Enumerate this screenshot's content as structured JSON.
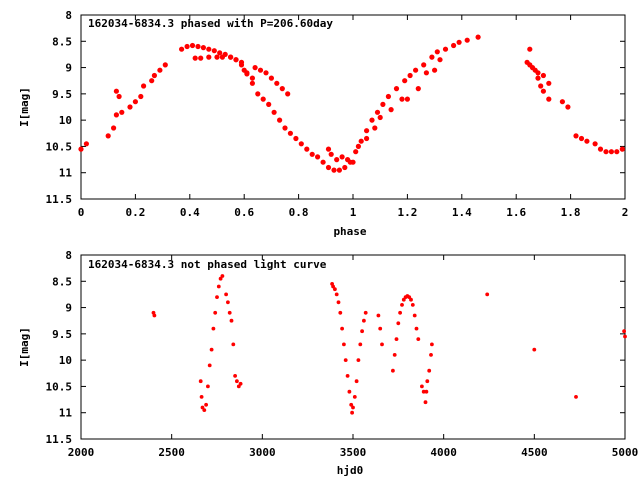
{
  "charts": [
    {
      "title": "162034-6834.3 phased with P=206.60day",
      "xlabel": "phase",
      "ylabel": "I[mag]",
      "xticks": [
        "0",
        "0.2",
        "0.4",
        "0.6",
        "0.8",
        "1",
        "1.2",
        "1.4",
        "1.6",
        "1.8",
        "2"
      ],
      "yticks": [
        "8",
        "8.5",
        "9",
        "9.5",
        "10",
        "10.5",
        "11",
        "11.5"
      ]
    },
    {
      "title": "162034-6834.3 not phased light curve",
      "xlabel": "hjd0",
      "ylabel": "I[mag]",
      "xticks": [
        "2000",
        "2500",
        "3000",
        "3500",
        "4000",
        "4500",
        "5000"
      ],
      "yticks": [
        "8",
        "8.5",
        "9",
        "9.5",
        "10",
        "10.5",
        "11",
        "11.5"
      ]
    }
  ],
  "chart_data": [
    {
      "type": "scatter",
      "title": "162034-6834.3 phased with P=206.60day",
      "xlabel": "phase",
      "ylabel": "I[mag]",
      "xlim": [
        0,
        2
      ],
      "ylim": [
        11.5,
        8
      ],
      "y_inverted": true,
      "grid": false,
      "marker_color": "#ff0000",
      "points": [
        [
          0.0,
          10.55
        ],
        [
          0.02,
          10.45
        ],
        [
          0.1,
          10.3
        ],
        [
          0.12,
          10.15
        ],
        [
          0.13,
          9.9
        ],
        [
          0.13,
          9.45
        ],
        [
          0.14,
          9.55
        ],
        [
          0.15,
          9.85
        ],
        [
          0.18,
          9.75
        ],
        [
          0.2,
          9.65
        ],
        [
          0.22,
          9.55
        ],
        [
          0.23,
          9.35
        ],
        [
          0.26,
          9.25
        ],
        [
          0.27,
          9.15
        ],
        [
          0.29,
          9.05
        ],
        [
          0.31,
          8.95
        ],
        [
          0.37,
          8.65
        ],
        [
          0.39,
          8.6
        ],
        [
          0.41,
          8.58
        ],
        [
          0.43,
          8.6
        ],
        [
          0.45,
          8.62
        ],
        [
          0.47,
          8.65
        ],
        [
          0.49,
          8.68
        ],
        [
          0.51,
          8.72
        ],
        [
          0.53,
          8.75
        ],
        [
          0.55,
          8.8
        ],
        [
          0.57,
          8.85
        ],
        [
          0.59,
          8.9
        ],
        [
          0.6,
          9.05
        ],
        [
          0.61,
          9.12
        ],
        [
          0.63,
          9.2
        ],
        [
          0.42,
          8.82
        ],
        [
          0.44,
          8.82
        ],
        [
          0.47,
          8.8
        ],
        [
          0.5,
          8.8
        ],
        [
          0.52,
          8.8
        ],
        [
          0.55,
          8.8
        ],
        [
          0.57,
          8.85
        ],
        [
          0.59,
          8.95
        ],
        [
          0.61,
          9.1
        ],
        [
          0.63,
          9.3
        ],
        [
          0.65,
          9.5
        ],
        [
          0.67,
          9.6
        ],
        [
          0.69,
          9.7
        ],
        [
          0.71,
          9.85
        ],
        [
          0.73,
          10.0
        ],
        [
          0.75,
          10.15
        ],
        [
          0.77,
          10.25
        ],
        [
          0.79,
          10.35
        ],
        [
          0.81,
          10.45
        ],
        [
          0.83,
          10.55
        ],
        [
          0.85,
          10.65
        ],
        [
          0.87,
          10.7
        ],
        [
          0.89,
          10.8
        ],
        [
          0.91,
          10.9
        ],
        [
          0.93,
          10.95
        ],
        [
          0.95,
          10.95
        ],
        [
          0.97,
          10.9
        ],
        [
          0.99,
          10.8
        ],
        [
          1.01,
          10.6
        ],
        [
          1.03,
          10.4
        ],
        [
          1.05,
          10.2
        ],
        [
          1.07,
          10.0
        ],
        [
          1.09,
          9.85
        ],
        [
          1.11,
          9.7
        ],
        [
          1.13,
          9.55
        ],
        [
          1.16,
          9.4
        ],
        [
          1.19,
          9.25
        ],
        [
          1.21,
          9.15
        ],
        [
          1.23,
          9.05
        ],
        [
          1.26,
          8.95
        ],
        [
          1.29,
          8.8
        ],
        [
          1.31,
          8.7
        ],
        [
          1.34,
          8.65
        ],
        [
          1.37,
          8.58
        ],
        [
          1.39,
          8.52
        ],
        [
          1.42,
          8.48
        ],
        [
          1.46,
          8.42
        ],
        [
          0.64,
          9.0
        ],
        [
          0.66,
          9.05
        ],
        [
          0.68,
          9.1
        ],
        [
          0.7,
          9.2
        ],
        [
          0.72,
          9.3
        ],
        [
          0.74,
          9.4
        ],
        [
          0.76,
          9.5
        ],
        [
          0.91,
          10.55
        ],
        [
          0.92,
          10.65
        ],
        [
          0.94,
          10.75
        ],
        [
          0.96,
          10.7
        ],
        [
          0.98,
          10.75
        ],
        [
          1.0,
          10.8
        ],
        [
          1.02,
          10.5
        ],
        [
          1.05,
          10.35
        ],
        [
          1.08,
          10.15
        ],
        [
          1.1,
          9.95
        ],
        [
          1.14,
          9.8
        ],
        [
          1.18,
          9.6
        ],
        [
          1.2,
          9.6
        ],
        [
          1.24,
          9.4
        ],
        [
          1.27,
          9.1
        ],
        [
          1.3,
          9.05
        ],
        [
          1.32,
          8.85
        ],
        [
          1.64,
          8.9
        ],
        [
          1.65,
          8.95
        ],
        [
          1.65,
          8.65
        ],
        [
          1.67,
          9.05
        ],
        [
          1.68,
          9.2
        ],
        [
          1.69,
          9.35
        ],
        [
          1.7,
          9.45
        ],
        [
          1.72,
          9.6
        ],
        [
          1.66,
          9.0
        ],
        [
          1.68,
          9.1
        ],
        [
          1.7,
          9.15
        ],
        [
          1.72,
          9.3
        ],
        [
          1.77,
          9.65
        ],
        [
          1.79,
          9.75
        ],
        [
          1.82,
          10.3
        ],
        [
          1.84,
          10.35
        ],
        [
          1.86,
          10.4
        ],
        [
          1.89,
          10.45
        ],
        [
          1.91,
          10.55
        ],
        [
          1.93,
          10.6
        ],
        [
          1.95,
          10.6
        ],
        [
          1.97,
          10.6
        ],
        [
          1.99,
          10.55
        ]
      ]
    },
    {
      "type": "scatter",
      "title": "162034-6834.3 not phased light curve",
      "xlabel": "hjd0",
      "ylabel": "I[mag]",
      "xlim": [
        2000,
        5000
      ],
      "ylim": [
        11.5,
        8
      ],
      "y_inverted": true,
      "grid": false,
      "marker_color": "#ff0000",
      "points": [
        [
          2400,
          9.1
        ],
        [
          2405,
          9.15
        ],
        [
          2660,
          10.4
        ],
        [
          2665,
          10.7
        ],
        [
          2670,
          10.9
        ],
        [
          2680,
          10.95
        ],
        [
          2690,
          10.85
        ],
        [
          2700,
          10.5
        ],
        [
          2710,
          10.1
        ],
        [
          2720,
          9.8
        ],
        [
          2730,
          9.4
        ],
        [
          2740,
          9.1
        ],
        [
          2750,
          8.8
        ],
        [
          2760,
          8.6
        ],
        [
          2770,
          8.45
        ],
        [
          2780,
          8.4
        ],
        [
          2800,
          8.75
        ],
        [
          2810,
          8.9
        ],
        [
          2820,
          9.1
        ],
        [
          2830,
          9.25
        ],
        [
          2840,
          9.7
        ],
        [
          2850,
          10.3
        ],
        [
          2860,
          10.4
        ],
        [
          2870,
          10.5
        ],
        [
          2880,
          10.45
        ],
        [
          3385,
          8.55
        ],
        [
          3390,
          8.6
        ],
        [
          3400,
          8.65
        ],
        [
          3410,
          8.75
        ],
        [
          3420,
          8.9
        ],
        [
          3430,
          9.1
        ],
        [
          3440,
          9.4
        ],
        [
          3450,
          9.7
        ],
        [
          3460,
          10.0
        ],
        [
          3470,
          10.3
        ],
        [
          3480,
          10.6
        ],
        [
          3490,
          10.85
        ],
        [
          3495,
          11.0
        ],
        [
          3500,
          10.9
        ],
        [
          3510,
          10.7
        ],
        [
          3520,
          10.4
        ],
        [
          3530,
          10.0
        ],
        [
          3540,
          9.7
        ],
        [
          3550,
          9.45
        ],
        [
          3560,
          9.25
        ],
        [
          3570,
          9.1
        ],
        [
          3640,
          9.15
        ],
        [
          3650,
          9.4
        ],
        [
          3660,
          9.7
        ],
        [
          3720,
          10.2
        ],
        [
          3730,
          9.9
        ],
        [
          3740,
          9.6
        ],
        [
          3750,
          9.3
        ],
        [
          3760,
          9.1
        ],
        [
          3770,
          8.95
        ],
        [
          3780,
          8.85
        ],
        [
          3790,
          8.8
        ],
        [
          3800,
          8.78
        ],
        [
          3810,
          8.8
        ],
        [
          3820,
          8.85
        ],
        [
          3830,
          8.95
        ],
        [
          3840,
          9.15
        ],
        [
          3850,
          9.4
        ],
        [
          3860,
          9.6
        ],
        [
          3880,
          10.5
        ],
        [
          3890,
          10.6
        ],
        [
          3900,
          10.8
        ],
        [
          3905,
          10.6
        ],
        [
          3910,
          10.4
        ],
        [
          3920,
          10.2
        ],
        [
          3930,
          9.9
        ],
        [
          3935,
          9.7
        ],
        [
          4240,
          8.75
        ],
        [
          4500,
          9.8
        ],
        [
          4730,
          10.7
        ],
        [
          4995,
          9.45
        ],
        [
          5000,
          9.55
        ]
      ]
    }
  ]
}
